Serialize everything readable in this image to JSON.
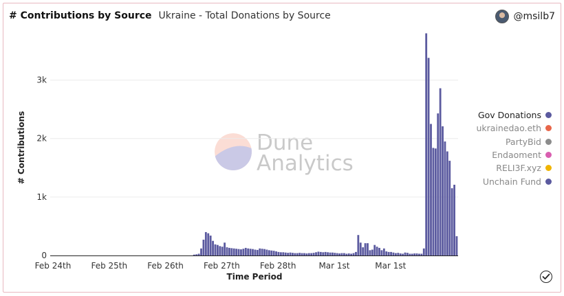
{
  "header": {
    "title": "# Contributions by Source",
    "subtitle": "Ukraine - Total Donations by Source",
    "username": "@msilb7"
  },
  "watermark": {
    "line1": "Dune",
    "line2": "Analytics"
  },
  "colors": {
    "bar": "#5b5a9f",
    "legend": [
      "#5b5a9f",
      "#e8664a",
      "#8c8c8c",
      "#d95fb0",
      "#f0b400",
      "#5b5a9f"
    ]
  },
  "legend": [
    {
      "label": "Gov Donations",
      "active": true
    },
    {
      "label": "ukrainedao.eth",
      "active": false
    },
    {
      "label": "PartyBid",
      "active": false
    },
    {
      "label": "Endaoment",
      "active": false
    },
    {
      "label": "RELI3F.xyz",
      "active": false
    },
    {
      "label": "Unchain Fund",
      "active": false
    }
  ],
  "chart_data": {
    "type": "bar",
    "title": "# Contributions by Source",
    "xlabel": "Time Period",
    "ylabel": "# Contributions",
    "ylim": [
      0,
      3900
    ],
    "yticks": [
      {
        "value": 0,
        "label": "0"
      },
      {
        "value": 1000,
        "label": "1k"
      },
      {
        "value": 2000,
        "label": "2k"
      },
      {
        "value": 3000,
        "label": "3k"
      }
    ],
    "xticks": [
      {
        "index": 0,
        "label": "Feb 24th"
      },
      {
        "index": 24,
        "label": "Feb 25th"
      },
      {
        "index": 48,
        "label": "Feb 26th"
      },
      {
        "index": 72,
        "label": "Feb 27th"
      },
      {
        "index": 96,
        "label": "Feb 28th"
      },
      {
        "index": 120,
        "label": "Mar 1st"
      },
      {
        "index": 144,
        "label": "Mar 1st"
      }
    ],
    "grid": true,
    "legend_position": "right",
    "series": [
      {
        "name": "Gov Donations",
        "values": [
          0,
          0,
          0,
          0,
          0,
          0,
          0,
          0,
          0,
          0,
          0,
          0,
          0,
          0,
          0,
          0,
          0,
          0,
          0,
          0,
          0,
          0,
          0,
          0,
          0,
          0,
          0,
          0,
          0,
          0,
          0,
          0,
          0,
          0,
          0,
          0,
          0,
          0,
          0,
          0,
          0,
          0,
          0,
          0,
          0,
          0,
          0,
          0,
          0,
          0,
          0,
          0,
          0,
          0,
          0,
          0,
          0,
          0,
          0,
          0,
          0,
          15,
          20,
          30,
          120,
          270,
          400,
          380,
          340,
          250,
          190,
          180,
          160,
          150,
          220,
          140,
          130,
          125,
          120,
          115,
          110,
          105,
          115,
          130,
          120,
          115,
          110,
          100,
          95,
          120,
          115,
          110,
          100,
          90,
          85,
          80,
          70,
          60,
          55,
          55,
          50,
          45,
          50,
          45,
          40,
          40,
          45,
          40,
          40,
          35,
          40,
          40,
          45,
          55,
          65,
          60,
          55,
          60,
          55,
          50,
          50,
          45,
          40,
          35,
          40,
          40,
          30,
          35,
          30,
          40,
          60,
          350,
          220,
          140,
          210,
          210,
          90,
          100,
          180,
          150,
          130,
          90,
          120,
          70,
          60,
          60,
          50,
          40,
          45,
          35,
          30,
          50,
          45,
          30,
          30,
          35,
          35,
          30,
          30,
          120,
          3800,
          3380,
          2250,
          1840,
          1830,
          2430,
          2860,
          2210,
          1950,
          1780,
          1620,
          1150,
          1210,
          330
        ]
      }
    ]
  }
}
